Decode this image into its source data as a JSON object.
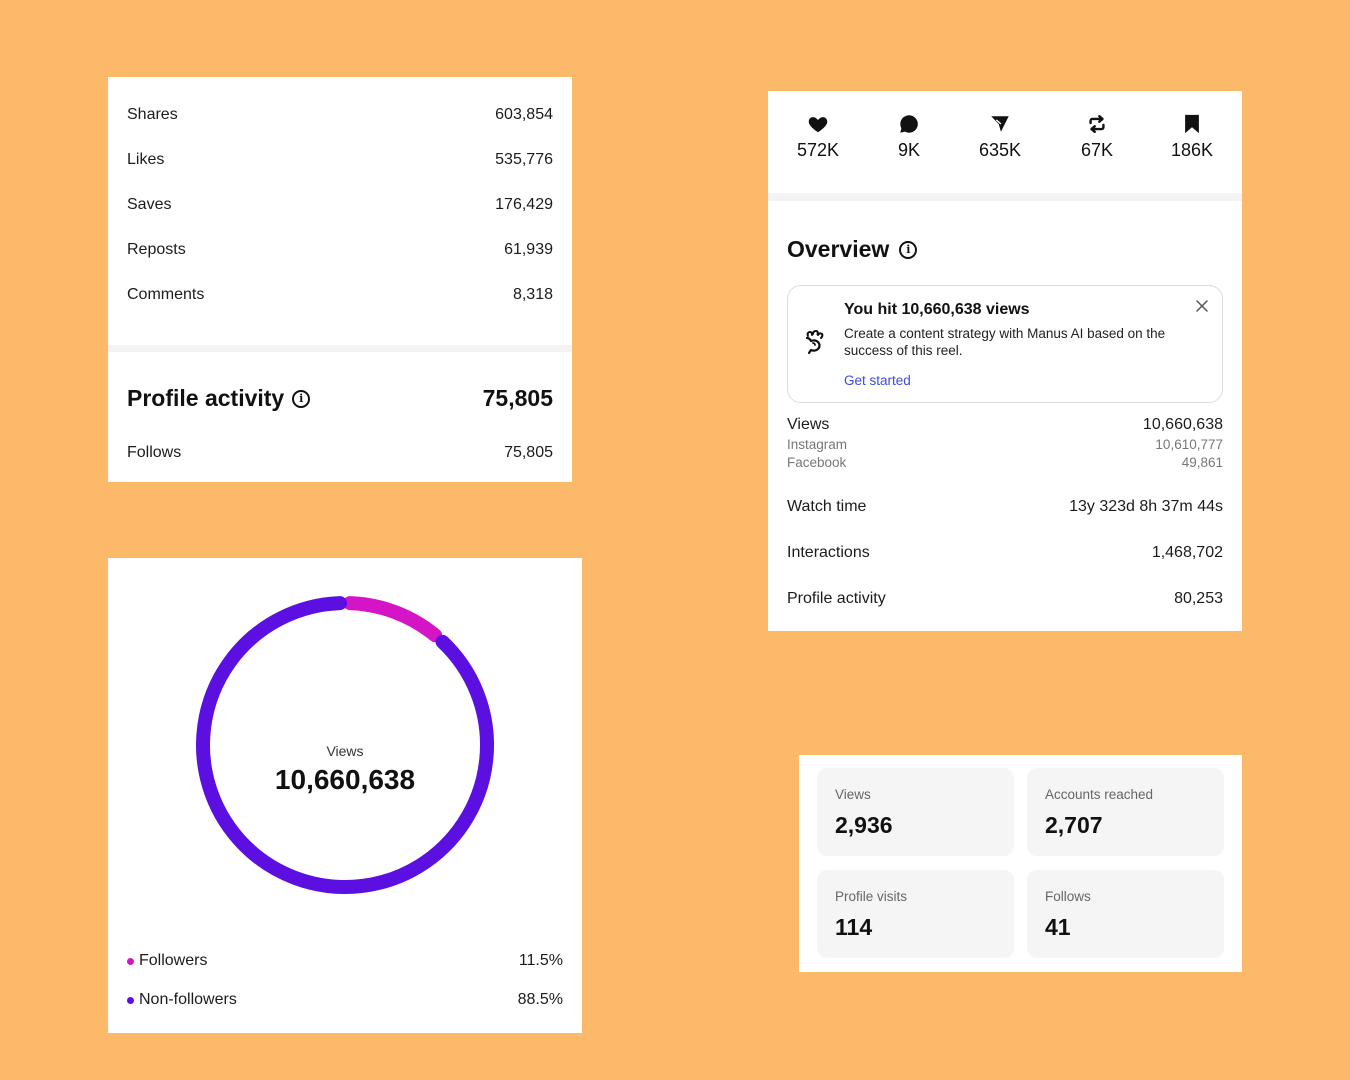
{
  "stats_card": {
    "rows": [
      {
        "label": "Shares",
        "value": "603,854"
      },
      {
        "label": "Likes",
        "value": "535,776"
      },
      {
        "label": "Saves",
        "value": "176,429"
      },
      {
        "label": "Reposts",
        "value": "61,939"
      },
      {
        "label": "Comments",
        "value": "8,318"
      }
    ],
    "profile_activity": {
      "title": "Profile activity",
      "value": "75,805"
    },
    "follows": {
      "label": "Follows",
      "value": "75,805"
    }
  },
  "overview_card": {
    "metrics": [
      {
        "icon": "heart-icon",
        "value": "572K"
      },
      {
        "icon": "comment-icon",
        "value": "9K"
      },
      {
        "icon": "share-icon",
        "value": "635K"
      },
      {
        "icon": "repost-icon",
        "value": "67K"
      },
      {
        "icon": "bookmark-icon",
        "value": "186K"
      }
    ],
    "title": "Overview",
    "banner": {
      "title": "You hit 10,660,638 views",
      "text": "Create a content strategy with Manus AI based on the success of this reel.",
      "link": "Get started"
    },
    "views": {
      "label": "Views",
      "value": "10,660,638"
    },
    "instagram": {
      "label": "Instagram",
      "value": "10,610,777"
    },
    "facebook": {
      "label": "Facebook",
      "value": "49,861"
    },
    "watch_time": {
      "label": "Watch time",
      "value": "13y 323d 8h 37m 44s"
    },
    "interactions": {
      "label": "Interactions",
      "value": "1,468,702"
    },
    "profile_activity": {
      "label": "Profile activity",
      "value": "80,253"
    }
  },
  "donut_card": {
    "center_label": "Views",
    "center_value": "10,660,638",
    "legend": [
      {
        "label": "Followers",
        "value": "11.5%",
        "color": "#D414C6"
      },
      {
        "label": "Non-followers",
        "value": "88.5%",
        "color": "#5B0FE0"
      }
    ]
  },
  "chart_data": {
    "type": "pie",
    "categories": [
      "Followers",
      "Non-followers"
    ],
    "values": [
      11.5,
      88.5
    ],
    "colors": [
      "#D414C6",
      "#5B0FE0"
    ]
  },
  "tiles_card": {
    "tiles": [
      {
        "label": "Views",
        "value": "2,936"
      },
      {
        "label": "Accounts reached",
        "value": "2,707"
      },
      {
        "label": "Profile visits",
        "value": "114"
      },
      {
        "label": "Follows",
        "value": "41"
      }
    ]
  }
}
